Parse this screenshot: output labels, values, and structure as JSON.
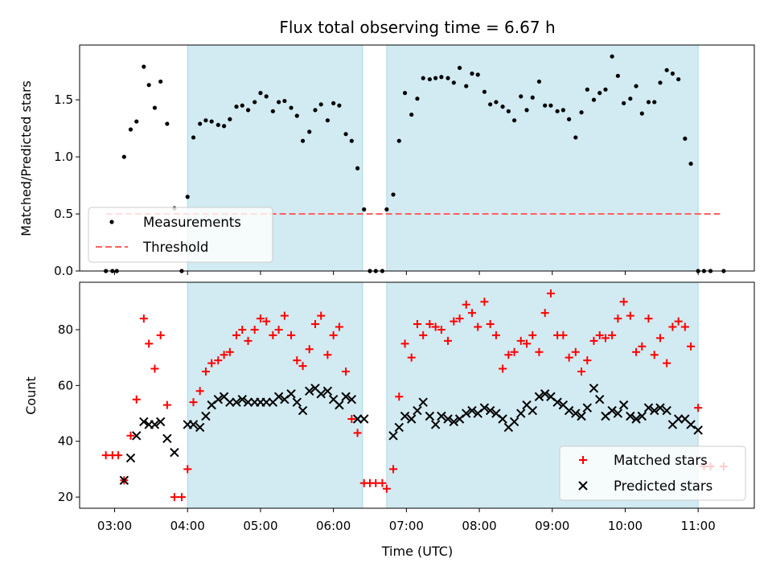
{
  "figure": {
    "title": "Flux total observing time = 6.67 h",
    "xlabel": "Time (UTC)"
  },
  "colors": {
    "shade": "#add8e6",
    "measurement": "#000000",
    "threshold": "#ff6060",
    "matched": "#ff0000",
    "predicted": "#000000"
  },
  "chart_data": [
    {
      "type": "scatter",
      "panel": "top",
      "ylabel": "Matched/Predicted stars",
      "x_unit": "hours UTC",
      "xlim": [
        2.52,
        11.77
      ],
      "ylim": [
        0.0,
        1.98
      ],
      "yticks": [
        "0.0",
        "0.5",
        "1.0",
        "1.5"
      ],
      "shaded_intervals": [
        [
          4.0,
          6.4
        ],
        [
          6.73,
          11.0
        ]
      ],
      "threshold": {
        "name": "Threshold",
        "y": 0.5,
        "x_range": [
          2.88,
          11.3
        ]
      },
      "legend": {
        "location": "lower-left",
        "entries": [
          "Measurements",
          "Threshold"
        ]
      },
      "series": [
        {
          "name": "Measurements",
          "x": [
            2.88,
            2.97,
            3.03,
            3.13,
            3.22,
            3.3,
            3.4,
            3.47,
            3.55,
            3.63,
            3.72,
            3.82,
            3.92,
            4.0,
            4.08,
            4.17,
            4.25,
            4.33,
            4.42,
            4.5,
            4.58,
            4.67,
            4.75,
            4.83,
            4.92,
            5.0,
            5.08,
            5.17,
            5.25,
            5.33,
            5.42,
            5.5,
            5.58,
            5.67,
            5.75,
            5.83,
            5.92,
            6.0,
            6.08,
            6.17,
            6.25,
            6.33,
            6.42,
            6.5,
            6.58,
            6.67,
            6.73,
            6.82,
            6.9,
            6.98,
            7.07,
            7.15,
            7.23,
            7.32,
            7.4,
            7.48,
            7.57,
            7.65,
            7.73,
            7.82,
            7.9,
            7.98,
            8.07,
            8.15,
            8.23,
            8.32,
            8.4,
            8.48,
            8.57,
            8.65,
            8.73,
            8.82,
            8.9,
            8.98,
            9.07,
            9.15,
            9.23,
            9.32,
            9.4,
            9.48,
            9.57,
            9.65,
            9.73,
            9.82,
            9.9,
            9.98,
            10.07,
            10.15,
            10.23,
            10.32,
            10.4,
            10.48,
            10.57,
            10.65,
            10.73,
            10.82,
            10.9,
            11.0,
            11.08,
            11.17,
            11.35
          ],
          "y": [
            0.0,
            0.0,
            0.0,
            1.0,
            1.24,
            1.31,
            1.79,
            1.63,
            1.43,
            1.66,
            1.29,
            0.55,
            0.0,
            0.65,
            1.17,
            1.29,
            1.32,
            1.31,
            1.28,
            1.27,
            1.33,
            1.44,
            1.45,
            1.41,
            1.48,
            1.56,
            1.53,
            1.4,
            1.48,
            1.49,
            1.43,
            1.36,
            1.14,
            1.22,
            1.41,
            1.46,
            1.32,
            1.47,
            1.45,
            1.2,
            1.14,
            0.9,
            0.54,
            0.0,
            0.0,
            0.0,
            0.54,
            0.67,
            1.14,
            1.56,
            1.37,
            1.51,
            1.69,
            1.68,
            1.69,
            1.7,
            1.69,
            1.65,
            1.78,
            1.62,
            1.73,
            1.72,
            1.57,
            1.46,
            1.48,
            1.44,
            1.4,
            1.32,
            1.53,
            1.41,
            1.52,
            1.66,
            1.45,
            1.45,
            1.4,
            1.41,
            1.33,
            1.17,
            1.39,
            1.59,
            1.5,
            1.56,
            1.59,
            1.88,
            1.71,
            1.47,
            1.51,
            1.62,
            1.38,
            1.48,
            1.48,
            1.65,
            1.76,
            1.73,
            1.68,
            1.16,
            0.94,
            0.0,
            0.0,
            0.0,
            0.0
          ]
        }
      ]
    },
    {
      "type": "scatter",
      "panel": "bottom",
      "ylabel": "Count",
      "x_unit": "hours UTC",
      "xlim": [
        2.52,
        11.77
      ],
      "ylim": [
        16.0,
        97.0
      ],
      "yticks": [
        "20",
        "40",
        "60",
        "80"
      ],
      "xticks": [
        "03:00",
        "04:00",
        "05:00",
        "06:00",
        "07:00",
        "08:00",
        "09:00",
        "10:00",
        "11:00"
      ],
      "xtick_values": [
        3,
        4,
        5,
        6,
        7,
        8,
        9,
        10,
        11
      ],
      "shaded_intervals": [
        [
          4.0,
          6.4
        ],
        [
          6.73,
          11.0
        ]
      ],
      "legend": {
        "location": "lower-right",
        "entries": [
          "Matched stars",
          "Predicted stars"
        ]
      },
      "series": [
        {
          "name": "Matched stars",
          "x": [
            2.88,
            2.97,
            3.05,
            3.13,
            3.22,
            3.3,
            3.4,
            3.47,
            3.55,
            3.63,
            3.72,
            3.82,
            3.92,
            4.0,
            4.08,
            4.17,
            4.25,
            4.33,
            4.42,
            4.5,
            4.58,
            4.67,
            4.75,
            4.83,
            4.92,
            5.0,
            5.08,
            5.17,
            5.25,
            5.33,
            5.42,
            5.5,
            5.58,
            5.67,
            5.75,
            5.83,
            5.92,
            6.0,
            6.08,
            6.17,
            6.25,
            6.33,
            6.42,
            6.5,
            6.58,
            6.67,
            6.73,
            6.82,
            6.9,
            6.98,
            7.07,
            7.15,
            7.23,
            7.32,
            7.4,
            7.48,
            7.57,
            7.65,
            7.73,
            7.82,
            7.9,
            7.98,
            8.07,
            8.15,
            8.23,
            8.32,
            8.4,
            8.48,
            8.57,
            8.65,
            8.73,
            8.82,
            8.9,
            8.98,
            9.07,
            9.15,
            9.23,
            9.32,
            9.4,
            9.48,
            9.57,
            9.65,
            9.73,
            9.82,
            9.9,
            9.98,
            10.07,
            10.15,
            10.23,
            10.32,
            10.4,
            10.48,
            10.57,
            10.65,
            10.73,
            10.82,
            10.9,
            11.0,
            11.08,
            11.17,
            11.35
          ],
          "y": [
            35,
            35,
            35,
            26,
            42,
            55,
            84,
            75,
            66,
            78,
            53,
            20,
            20,
            30,
            54,
            58,
            65,
            68,
            69,
            71,
            72,
            78,
            80,
            76,
            80,
            84,
            83,
            78,
            80,
            85,
            78,
            69,
            67,
            73,
            82,
            85,
            71,
            78,
            81,
            65,
            48,
            43,
            25,
            25,
            25,
            25,
            23,
            30,
            56,
            75,
            70,
            82,
            78,
            82,
            81,
            80,
            76,
            83,
            84,
            89,
            86,
            81,
            90,
            82,
            78,
            66,
            71,
            72,
            76,
            75,
            78,
            72,
            86,
            93,
            78,
            78,
            70,
            72,
            65,
            69,
            76,
            78,
            77,
            78,
            84,
            90,
            85,
            72,
            74,
            84,
            71,
            77,
            68,
            81,
            83,
            81,
            74,
            52,
            31,
            31,
            31
          ]
        },
        {
          "name": "Predicted stars",
          "x": [
            3.13,
            3.22,
            3.3,
            3.4,
            3.47,
            3.55,
            3.63,
            3.72,
            3.82,
            4.0,
            4.08,
            4.17,
            4.25,
            4.33,
            4.42,
            4.5,
            4.58,
            4.67,
            4.75,
            4.83,
            4.92,
            5.0,
            5.08,
            5.17,
            5.25,
            5.33,
            5.42,
            5.5,
            5.58,
            5.67,
            5.75,
            5.83,
            5.92,
            6.0,
            6.08,
            6.17,
            6.25,
            6.33,
            6.42,
            6.82,
            6.9,
            6.98,
            7.07,
            7.15,
            7.23,
            7.32,
            7.4,
            7.48,
            7.57,
            7.65,
            7.73,
            7.82,
            7.9,
            7.98,
            8.07,
            8.15,
            8.23,
            8.32,
            8.4,
            8.48,
            8.57,
            8.65,
            8.73,
            8.82,
            8.9,
            8.98,
            9.07,
            9.15,
            9.23,
            9.32,
            9.4,
            9.48,
            9.57,
            9.65,
            9.73,
            9.82,
            9.9,
            9.98,
            10.07,
            10.15,
            10.23,
            10.32,
            10.4,
            10.48,
            10.57,
            10.65,
            10.73,
            10.82,
            10.9,
            11.0
          ],
          "y": [
            26,
            34,
            42,
            47,
            46,
            46,
            47,
            41,
            36,
            46,
            46,
            45,
            49,
            53,
            55,
            56,
            54,
            54,
            55,
            54,
            54,
            54,
            54,
            54,
            56,
            55,
            57,
            54,
            51,
            58,
            59,
            57,
            58,
            55,
            53,
            56,
            55,
            48,
            48,
            42,
            45,
            49,
            48,
            51,
            54,
            49,
            46,
            49,
            48,
            47,
            48,
            50,
            51,
            50,
            52,
            51,
            50,
            48,
            45,
            47,
            50,
            53,
            51,
            56,
            57,
            56,
            54,
            53,
            51,
            50,
            49,
            52,
            59,
            55,
            49,
            51,
            50,
            53,
            49,
            48,
            49,
            52,
            51,
            52,
            51,
            46,
            48,
            48,
            46,
            44
          ]
        }
      ]
    }
  ]
}
